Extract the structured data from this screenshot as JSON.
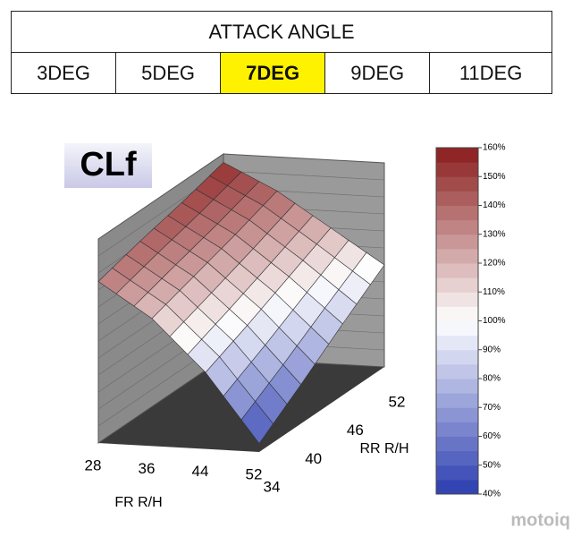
{
  "header": {
    "title": "ATTACK ANGLE",
    "options": [
      "3DEG",
      "5DEG",
      "7DEG",
      "9DEG",
      "11DEG"
    ],
    "selected": 2
  },
  "chart_data": {
    "type": "surface3d",
    "title": "CLf",
    "xlabel": "FR R/H",
    "ylabel": "RR R/H",
    "x": [
      28,
      36,
      44,
      52
    ],
    "y": [
      34,
      40,
      46,
      52
    ],
    "z": [
      [
        135,
        142,
        148,
        155
      ],
      [
        115,
        123,
        131,
        140
      ],
      [
        85,
        96,
        108,
        120
      ],
      [
        45,
        63,
        82,
        100
      ]
    ],
    "xlim": [
      28,
      52
    ],
    "ylim": [
      34,
      52
    ],
    "zlim": [
      40,
      160
    ],
    "xticks": [
      28,
      36,
      44,
      52
    ],
    "yticks": [
      34,
      40,
      46,
      52
    ],
    "colormap": [
      "#2a3cb0",
      "#ffffff",
      "#8a1c1c"
    ],
    "colorbar_ticks": [
      {
        "value": 40,
        "label": "40%"
      },
      {
        "value": 50,
        "label": "50%"
      },
      {
        "value": 60,
        "label": "60%"
      },
      {
        "value": 70,
        "label": "70%"
      },
      {
        "value": 80,
        "label": "80%"
      },
      {
        "value": 90,
        "label": "90%"
      },
      {
        "value": 100,
        "label": "100%"
      },
      {
        "value": 110,
        "label": "110%"
      },
      {
        "value": 120,
        "label": "120%"
      },
      {
        "value": 130,
        "label": "130%"
      },
      {
        "value": 140,
        "label": "140%"
      },
      {
        "value": 150,
        "label": "150%"
      },
      {
        "value": 160,
        "label": "160%"
      }
    ]
  },
  "watermark": "motoiq"
}
